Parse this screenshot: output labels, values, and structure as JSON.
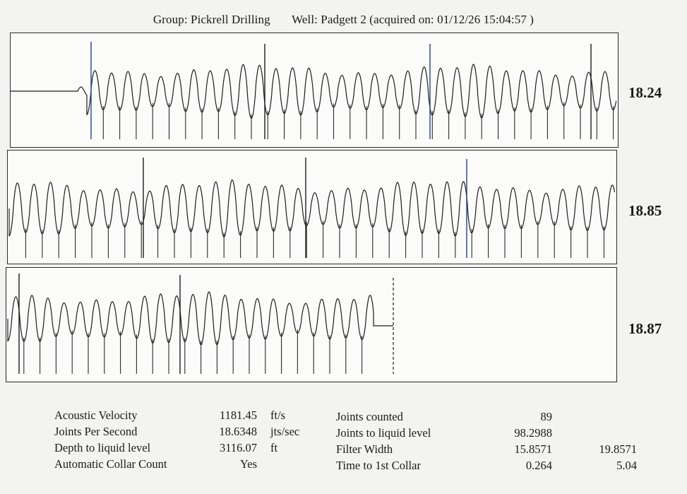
{
  "header": {
    "group": "Group: Pickrell Drilling",
    "well": "Well: Padgett 2 (acquired on: 01/12/26 15:04:57 )"
  },
  "panels": [
    {
      "value": "18.24"
    },
    {
      "value": "18.85"
    },
    {
      "value": "18.87"
    }
  ],
  "results": {
    "left": [
      {
        "label": "Acoustic Velocity",
        "value": "1181.45",
        "unit": "ft/s"
      },
      {
        "label": "Joints Per Second",
        "value": "18.6348",
        "unit": "jts/sec"
      },
      {
        "label": "Depth to liquid level",
        "value": "3116.07",
        "unit": "ft"
      },
      {
        "label": "Automatic Collar Count",
        "value": "Yes",
        "unit": ""
      }
    ],
    "right": [
      {
        "label": "Joints counted",
        "value": "89",
        "extra": ""
      },
      {
        "label": "Joints to liquid level",
        "value": "98.2988",
        "extra": ""
      },
      {
        "label": "Filter Width",
        "value": "15.8571",
        "extra": "19.8571"
      },
      {
        "label": "Time to 1st Collar",
        "value": "0.264",
        "extra": "5.04"
      }
    ]
  }
}
